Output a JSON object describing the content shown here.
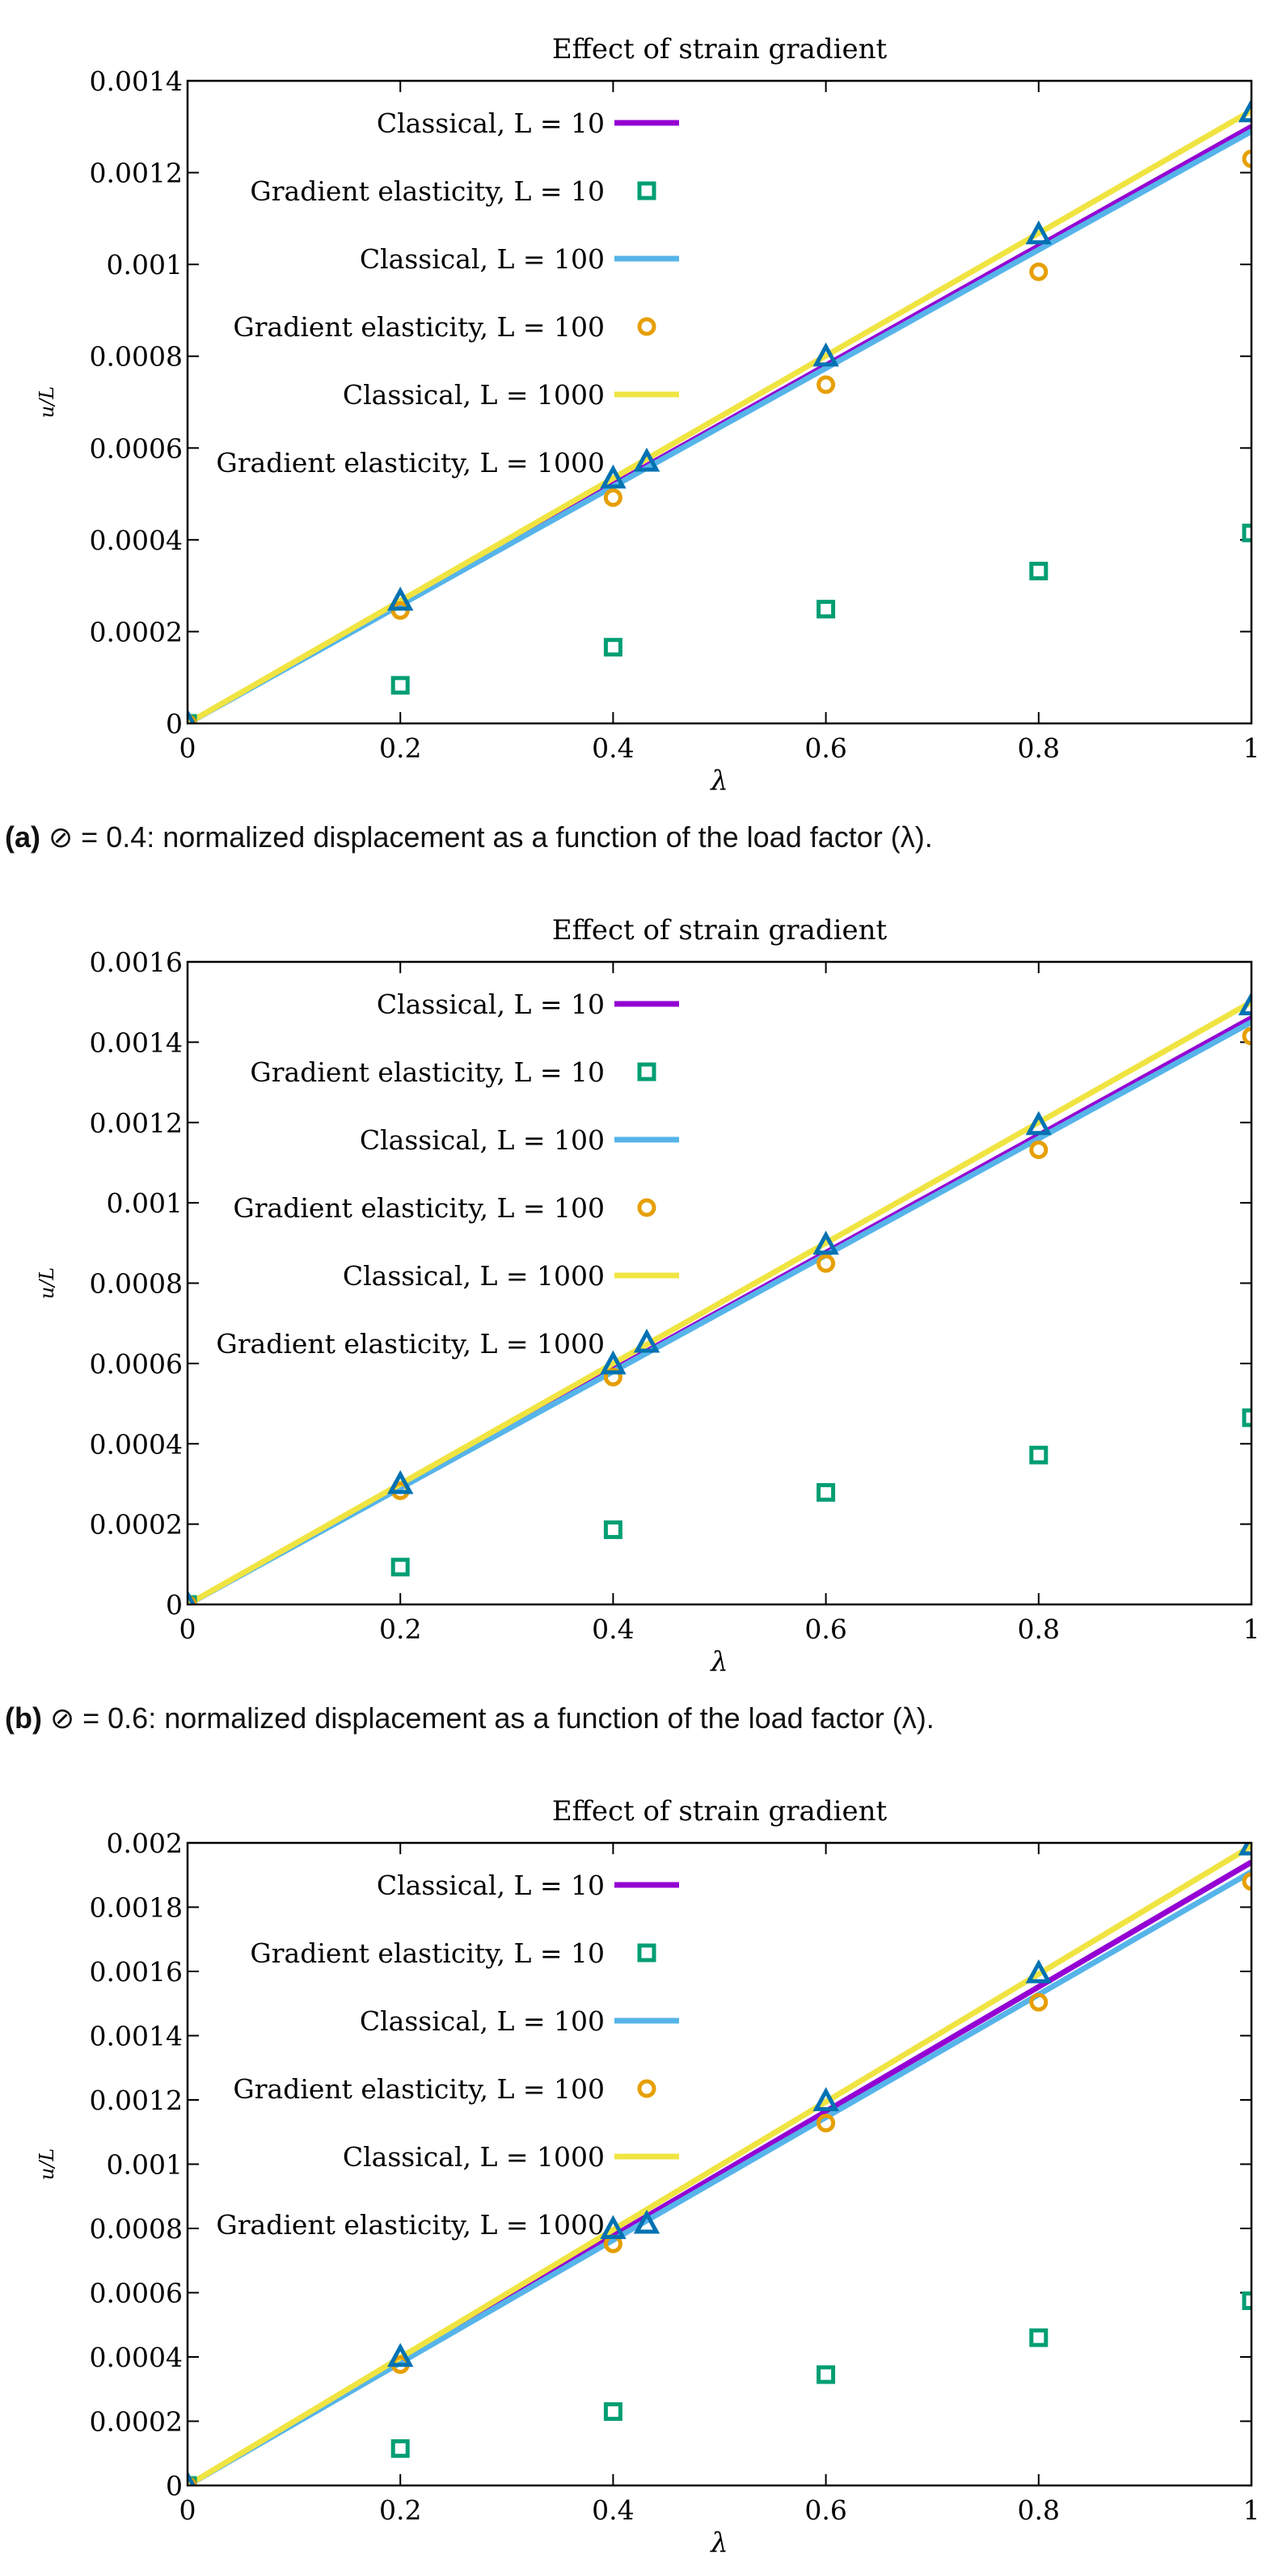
{
  "chart_data": [
    {
      "type": "line",
      "title": "Effect of strain gradient",
      "xlabel": "λ",
      "ylabel": "u/L",
      "xlim": [
        0,
        1
      ],
      "ylim": [
        0,
        0.0014
      ],
      "xticks": [
        0,
        0.2,
        0.4,
        0.6,
        0.8,
        1
      ],
      "xtick_labels": [
        "0",
        "0.2",
        "0.4",
        "0.6",
        "0.8",
        "1"
      ],
      "yticks": [
        0,
        0.0002,
        0.0004,
        0.0006,
        0.0008,
        0.001,
        0.0012,
        0.0014
      ],
      "ytick_labels": [
        "0",
        "0.0002",
        "0.0004",
        "0.0006",
        "0.0008",
        "0.001",
        "0.0012",
        "0.0014"
      ],
      "legend_position": "top-left",
      "series": [
        {
          "name": "Classical, L = 10",
          "kind": "line",
          "color": "#9400d3",
          "x": [
            0,
            1
          ],
          "y": [
            0,
            0.0013
          ]
        },
        {
          "name": "Gradient elasticity, L = 10",
          "kind": "square",
          "color": "#009e73",
          "x": [
            0,
            0.2,
            0.4,
            0.6,
            0.8,
            1
          ],
          "y": [
            0,
            8.3e-05,
            0.000166,
            0.000249,
            0.000332,
            0.000415
          ]
        },
        {
          "name": "Classical, L = 100",
          "kind": "line",
          "color": "#56b4e9",
          "x": [
            0,
            1
          ],
          "y": [
            0,
            0.00129
          ]
        },
        {
          "name": "Gradient elasticity, L = 100",
          "kind": "circle",
          "color": "#e69f00",
          "x": [
            0,
            0.2,
            0.4,
            0.6,
            0.8,
            1
          ],
          "y": [
            0,
            0.000246,
            0.000492,
            0.000738,
            0.000984,
            0.00123
          ]
        },
        {
          "name": "Classical, L = 1000",
          "kind": "line",
          "color": "#f0e442",
          "x": [
            0,
            1
          ],
          "y": [
            0,
            0.001335
          ]
        },
        {
          "name": "Gradient elasticity, L = 1000",
          "kind": "triangle",
          "color": "#0072b2",
          "x": [
            0,
            0.2,
            0.4,
            0.6,
            0.8,
            1
          ],
          "y": [
            0,
            0.000266,
            0.000532,
            0.000798,
            0.001064,
            0.00133
          ]
        }
      ],
      "caption_label": "(a)",
      "caption_text": " ⊘ = 0.4: normalized displacement as a function of the load factor (λ)."
    },
    {
      "type": "line",
      "title": "Effect of strain gradient",
      "xlabel": "λ",
      "ylabel": "u/L",
      "xlim": [
        0,
        1
      ],
      "ylim": [
        0,
        0.0016
      ],
      "xticks": [
        0,
        0.2,
        0.4,
        0.6,
        0.8,
        1
      ],
      "xtick_labels": [
        "0",
        "0.2",
        "0.4",
        "0.6",
        "0.8",
        "1"
      ],
      "yticks": [
        0,
        0.0002,
        0.0004,
        0.0006,
        0.0008,
        0.001,
        0.0012,
        0.0014,
        0.0016
      ],
      "ytick_labels": [
        "0",
        "0.0002",
        "0.0004",
        "0.0006",
        "0.0008",
        "0.001",
        "0.0012",
        "0.0014",
        "0.0016"
      ],
      "legend_position": "top-left",
      "series": [
        {
          "name": "Classical, L = 10",
          "kind": "line",
          "color": "#9400d3",
          "x": [
            0,
            1
          ],
          "y": [
            0,
            0.00146
          ]
        },
        {
          "name": "Gradient elasticity, L = 10",
          "kind": "square",
          "color": "#009e73",
          "x": [
            0,
            0.2,
            0.4,
            0.6,
            0.8,
            1
          ],
          "y": [
            0,
            9.3e-05,
            0.000186,
            0.000279,
            0.000372,
            0.000465
          ]
        },
        {
          "name": "Classical, L = 100",
          "kind": "line",
          "color": "#56b4e9",
          "x": [
            0,
            1
          ],
          "y": [
            0,
            0.00145
          ]
        },
        {
          "name": "Gradient elasticity, L = 100",
          "kind": "circle",
          "color": "#e69f00",
          "x": [
            0,
            0.2,
            0.4,
            0.6,
            0.8,
            1
          ],
          "y": [
            0,
            0.000283,
            0.000566,
            0.000849,
            0.001132,
            0.001415
          ]
        },
        {
          "name": "Classical, L = 1000",
          "kind": "line",
          "color": "#f0e442",
          "x": [
            0,
            1
          ],
          "y": [
            0,
            0.0015
          ]
        },
        {
          "name": "Gradient elasticity, L = 1000",
          "kind": "triangle",
          "color": "#0072b2",
          "x": [
            0,
            0.2,
            0.4,
            0.6,
            0.8,
            1
          ],
          "y": [
            0,
            0.000298,
            0.000596,
            0.000894,
            0.001192,
            0.00149
          ]
        }
      ],
      "caption_label": "(b)",
      "caption_text": " ⊘ = 0.6: normalized displacement as a function of the load factor (λ)."
    },
    {
      "type": "line",
      "title": "Effect of strain gradient",
      "xlabel": "λ",
      "ylabel": "u/L",
      "xlim": [
        0,
        1
      ],
      "ylim": [
        0,
        0.002
      ],
      "xticks": [
        0,
        0.2,
        0.4,
        0.6,
        0.8,
        1
      ],
      "xtick_labels": [
        "0",
        "0.2",
        "0.4",
        "0.6",
        "0.8",
        "1"
      ],
      "yticks": [
        0,
        0.0002,
        0.0004,
        0.0006,
        0.0008,
        0.001,
        0.0012,
        0.0014,
        0.0016,
        0.0018,
        0.002
      ],
      "ytick_labels": [
        "0",
        "0.0002",
        "0.0004",
        "0.0006",
        "0.0008",
        "0.001",
        "0.0012",
        "0.0014",
        "0.0016",
        "0.0018",
        "0.002"
      ],
      "legend_position": "top-left",
      "series": [
        {
          "name": "Classical, L = 10",
          "kind": "line",
          "color": "#9400d3",
          "x": [
            0,
            1
          ],
          "y": [
            0,
            0.00194
          ]
        },
        {
          "name": "Gradient elasticity, L = 10",
          "kind": "square",
          "color": "#009e73",
          "x": [
            0,
            0.2,
            0.4,
            0.6,
            0.8,
            1
          ],
          "y": [
            0,
            0.000115,
            0.00023,
            0.000345,
            0.00046,
            0.000575
          ]
        },
        {
          "name": "Classical, L = 100",
          "kind": "line",
          "color": "#56b4e9",
          "x": [
            0,
            1
          ],
          "y": [
            0,
            0.00191
          ]
        },
        {
          "name": "Gradient elasticity, L = 100",
          "kind": "circle",
          "color": "#e69f00",
          "x": [
            0,
            0.2,
            0.4,
            0.6,
            0.8,
            1
          ],
          "y": [
            0,
            0.000376,
            0.000752,
            0.001128,
            0.001504,
            0.00188
          ]
        },
        {
          "name": "Classical, L = 1000",
          "kind": "line",
          "color": "#f0e442",
          "x": [
            0,
            1
          ],
          "y": [
            0,
            0.00199
          ]
        },
        {
          "name": "Gradient elasticity, L = 1000",
          "kind": "triangle",
          "color": "#0072b2",
          "x": [
            0,
            0.2,
            0.4,
            0.6,
            0.8,
            1
          ],
          "y": [
            0,
            0.000398,
            0.000796,
            0.001194,
            0.001592,
            0.00199
          ]
        }
      ]
    }
  ]
}
